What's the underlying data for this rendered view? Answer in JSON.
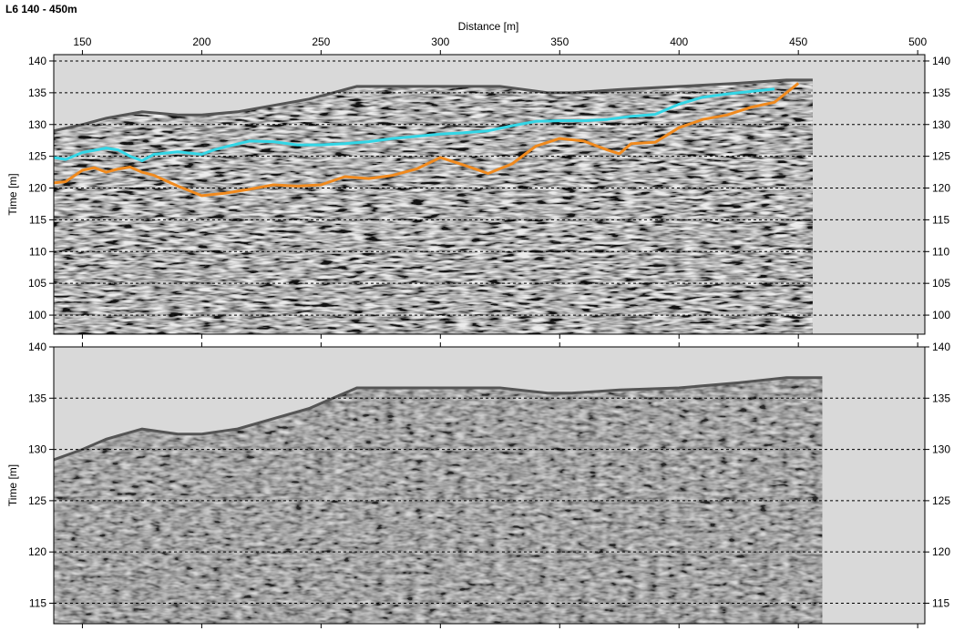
{
  "page": {
    "title": "L6 140 - 450m"
  },
  "colors": {
    "background_panel": "#d9d9d9",
    "radargram_gray": "#7f7f7f",
    "surface_line": "#555555",
    "cyan_horizon": "#33d6e6",
    "orange_horizon": "#f08a1e",
    "grid": "#000000"
  },
  "chart_data": [
    {
      "type": "line",
      "panel": "top",
      "xlabel": "Distance [m]",
      "ylabel": "Time [m]",
      "xlim": [
        138,
        503
      ],
      "ylim": [
        97,
        141
      ],
      "x_ticks": [
        150,
        200,
        250,
        300,
        350,
        400,
        450,
        500
      ],
      "y_ticks": [
        100,
        105,
        110,
        115,
        120,
        125,
        130,
        135,
        140
      ],
      "grid": "horizontal-dashed",
      "data_extent_x": [
        138,
        456
      ],
      "surface": {
        "x": [
          138,
          150,
          160,
          175,
          190,
          200,
          215,
          230,
          245,
          255,
          265,
          275,
          300,
          325,
          345,
          355,
          375,
          400,
          425,
          445,
          456
        ],
        "y": [
          129,
          130,
          131,
          132,
          131.5,
          131.5,
          132,
          133,
          134,
          135,
          136,
          136,
          136,
          136,
          135,
          135,
          135.5,
          136,
          136.5,
          137,
          137
        ]
      },
      "series": [
        {
          "name": "",
          "color": "#33d6e6",
          "x": [
            138,
            143,
            150,
            160,
            165,
            170,
            175,
            180,
            190,
            200,
            205,
            210,
            220,
            230,
            240,
            250,
            260,
            270,
            280,
            300,
            310,
            320,
            330,
            340,
            350,
            360,
            370,
            380,
            390,
            400,
            410,
            420,
            430,
            440
          ],
          "y": [
            124.8,
            124.5,
            125.6,
            126.3,
            126,
            125,
            124.3,
            125.3,
            125.7,
            125.3,
            126,
            126.5,
            127.4,
            127.3,
            126.8,
            126.8,
            127,
            127.3,
            127.8,
            128.5,
            128.7,
            129,
            129.8,
            130.5,
            130.6,
            130.6,
            130.8,
            131.3,
            131.6,
            133.2,
            134.3,
            134.8,
            135.2,
            135.6
          ]
        },
        {
          "name": "",
          "color": "#f08a1e",
          "x": [
            138,
            143,
            150,
            155,
            160,
            165,
            170,
            175,
            180,
            190,
            200,
            210,
            220,
            230,
            240,
            250,
            260,
            270,
            280,
            290,
            300,
            310,
            320,
            330,
            340,
            350,
            360,
            370,
            375,
            380,
            390,
            400,
            410,
            420,
            430,
            440,
            450
          ],
          "y": [
            120.8,
            121,
            122.8,
            123.2,
            122.5,
            123,
            123.3,
            122.5,
            122,
            120.3,
            118.8,
            119.2,
            119.8,
            120.5,
            120.3,
            120.5,
            121.8,
            121.5,
            122,
            123,
            124.8,
            123.6,
            122.3,
            123.8,
            126.6,
            127.8,
            127.4,
            126,
            125.4,
            127,
            127.2,
            129.5,
            130.8,
            131.5,
            132.7,
            133.5,
            136.5
          ]
        }
      ]
    },
    {
      "type": "line",
      "panel": "bottom",
      "xlabel": "",
      "ylabel": "Time [m]",
      "xlim": [
        138,
        503
      ],
      "ylim": [
        113,
        140
      ],
      "x_ticks": [
        150,
        200,
        250,
        300,
        350,
        400,
        450,
        500
      ],
      "y_ticks": [
        115,
        120,
        125,
        130,
        135,
        140
      ],
      "grid": "horizontal-dashed",
      "data_extent_x": [
        138,
        460
      ],
      "surface": {
        "x": [
          138,
          150,
          160,
          175,
          190,
          200,
          215,
          230,
          245,
          255,
          265,
          275,
          300,
          325,
          345,
          355,
          375,
          400,
          425,
          445,
          460
        ],
        "y": [
          129,
          130,
          131,
          132,
          131.5,
          131.5,
          132,
          133,
          134,
          135,
          136,
          136,
          136,
          136,
          135.5,
          135.5,
          135.8,
          136,
          136.5,
          137,
          137
        ]
      },
      "series": []
    }
  ]
}
